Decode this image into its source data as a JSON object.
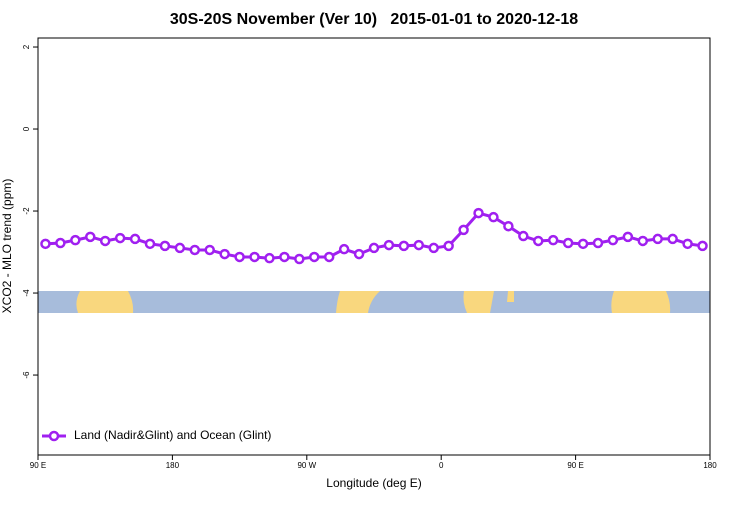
{
  "chart_data": {
    "type": "line",
    "title": "30S-20S November (Ver 10)   2015-01-01 to 2020-12-18",
    "x_label": "Longitude (deg E)",
    "y_label": "XCO2 - MLO trend (ppm)",
    "x": [
      95,
      105,
      115,
      125,
      135,
      145,
      155,
      165,
      175,
      185,
      195,
      205,
      215,
      225,
      235,
      245,
      255,
      265,
      275,
      285,
      295,
      305,
      315,
      325,
      335,
      345,
      355,
      365,
      375,
      385,
      395,
      405,
      415,
      425,
      435,
      445,
      455,
      465,
      475,
      485,
      495,
      505,
      515,
      525,
      535
    ],
    "series": [
      {
        "name": "Land (Nadir&Glint) and Ocean (Glint)",
        "color": "#a020f0",
        "values": [
          -2.8,
          -2.78,
          -2.71,
          -2.63,
          -2.73,
          -2.66,
          -2.68,
          -2.8,
          -2.85,
          -2.9,
          -2.95,
          -2.95,
          -3.05,
          -3.12,
          -3.12,
          -3.15,
          -3.12,
          -3.17,
          -3.12,
          -3.12,
          -2.93,
          -3.05,
          -2.9,
          -2.83,
          -2.85,
          -2.83,
          -2.9,
          -2.85,
          -2.46,
          -2.05,
          -2.15,
          -2.37,
          -2.61,
          -2.73,
          -2.71,
          -2.78,
          -2.8,
          -2.78,
          -2.71,
          -2.63,
          -2.73,
          -2.68,
          -2.68,
          -2.8,
          -2.85
        ]
      }
    ],
    "xlim": [
      90,
      540
    ],
    "xticks": [
      {
        "value": 90,
        "label": "90 E"
      },
      180,
      {
        "value": 270,
        "label": "90 W"
      },
      {
        "value": 360,
        "label": "0"
      },
      {
        "value": 450,
        "label": "90 E"
      },
      {
        "value": 540,
        "label": "180"
      }
    ],
    "ylim": [
      -7.95,
      2.22
    ],
    "yticks": [
      -6,
      -4,
      -2,
      0,
      2
    ],
    "legend": "bottom-left"
  }
}
